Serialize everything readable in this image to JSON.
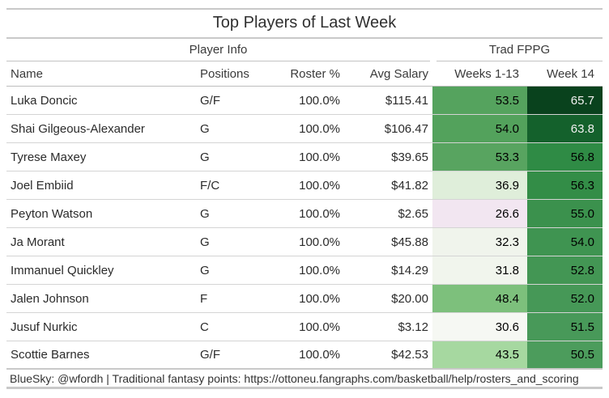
{
  "title": "Top Players of Last Week",
  "groups": {
    "player_info": "Player Info",
    "trad_fppg": "Trad FPPG"
  },
  "columns": {
    "name": "Name",
    "positions": "Positions",
    "roster": "Roster %",
    "salary": "Avg Salary",
    "weeks_1_13": "Weeks 1-13",
    "week_14": "Week 14"
  },
  "table": {
    "rows": [
      {
        "name": "Luka Doncic",
        "positions": "G/F",
        "roster": "100.0%",
        "salary": "$115.41",
        "w13": "53.5",
        "w14": "65.7",
        "w13_bg": "#55a35e",
        "w13_fg": "#000000",
        "w14_bg": "#09421d",
        "w14_fg": "#f1f1f1"
      },
      {
        "name": "Shai Gilgeous-Alexander",
        "positions": "G",
        "roster": "100.0%",
        "salary": "$106.47",
        "w13": "54.0",
        "w14": "63.8",
        "w13_bg": "#53a25c",
        "w13_fg": "#000000",
        "w14_bg": "#14612c",
        "w14_fg": "#f1f1f1"
      },
      {
        "name": "Tyrese Maxey",
        "positions": "G",
        "roster": "100.0%",
        "salary": "$39.65",
        "w13": "53.3",
        "w14": "56.8",
        "w13_bg": "#58a460",
        "w13_fg": "#000000",
        "w14_bg": "#2f8b45",
        "w14_fg": "#000000"
      },
      {
        "name": "Joel Embiid",
        "positions": "F/C",
        "roster": "100.0%",
        "salary": "$41.82",
        "w13": "36.9",
        "w14": "56.3",
        "w13_bg": "#dfeeda",
        "w13_fg": "#000000",
        "w14_bg": "#338d47",
        "w14_fg": "#000000"
      },
      {
        "name": "Peyton Watson",
        "positions": "G",
        "roster": "100.0%",
        "salary": "$2.65",
        "w13": "26.6",
        "w14": "55.0",
        "w13_bg": "#f2e6f1",
        "w13_fg": "#000000",
        "w14_bg": "#3b914d",
        "w14_fg": "#000000"
      },
      {
        "name": "Ja Morant",
        "positions": "G",
        "roster": "100.0%",
        "salary": "$45.88",
        "w13": "32.3",
        "w14": "54.0",
        "w13_bg": "#f0f4ec",
        "w13_fg": "#000000",
        "w14_bg": "#3f9451",
        "w14_fg": "#000000"
      },
      {
        "name": "Immanuel Quickley",
        "positions": "G",
        "roster": "100.0%",
        "salary": "$14.29",
        "w13": "31.8",
        "w14": "52.8",
        "w13_bg": "#f1f5ed",
        "w13_fg": "#000000",
        "w14_bg": "#439654",
        "w14_fg": "#000000"
      },
      {
        "name": "Jalen Johnson",
        "positions": "F",
        "roster": "100.0%",
        "salary": "$20.00",
        "w13": "48.4",
        "w14": "52.0",
        "w13_bg": "#7dc07c",
        "w13_fg": "#000000",
        "w14_bg": "#469857",
        "w14_fg": "#000000"
      },
      {
        "name": "Jusuf Nurkic",
        "positions": "C",
        "roster": "100.0%",
        "salary": "$3.12",
        "w13": "30.6",
        "w14": "51.5",
        "w13_bg": "#f6f8f3",
        "w13_fg": "#000000",
        "w14_bg": "#489959",
        "w14_fg": "#000000"
      },
      {
        "name": "Scottie Barnes",
        "positions": "G/F",
        "roster": "100.0%",
        "salary": "$42.53",
        "w13": "43.5",
        "w14": "50.5",
        "w13_bg": "#a6d8a0",
        "w13_fg": "#000000",
        "w14_bg": "#4c9c5c",
        "w14_fg": "#000000"
      }
    ]
  },
  "footer": "BlueSky: @wfordh | Traditional fantasy points: https://ottoneu.fangraphs.com/basketball/help/rosters_and_scoring",
  "chart_data": {
    "type": "table",
    "title": "Top Players of Last Week",
    "column_groups": [
      {
        "label": "Player Info",
        "columns": [
          "Name",
          "Positions",
          "Roster %",
          "Avg Salary"
        ]
      },
      {
        "label": "Trad FPPG",
        "columns": [
          "Weeks 1-13",
          "Week 14"
        ]
      }
    ],
    "columns": [
      "Name",
      "Positions",
      "Roster %",
      "Avg Salary",
      "Weeks 1-13",
      "Week 14"
    ],
    "rows": [
      [
        "Luka Doncic",
        "G/F",
        "100.0%",
        "$115.41",
        53.5,
        65.7
      ],
      [
        "Shai Gilgeous-Alexander",
        "G",
        "100.0%",
        "$106.47",
        54.0,
        63.8
      ],
      [
        "Tyrese Maxey",
        "G",
        "100.0%",
        "$39.65",
        53.3,
        56.8
      ],
      [
        "Joel Embiid",
        "F/C",
        "100.0%",
        "$41.82",
        36.9,
        56.3
      ],
      [
        "Peyton Watson",
        "G",
        "100.0%",
        "$2.65",
        26.6,
        55.0
      ],
      [
        "Ja Morant",
        "G",
        "100.0%",
        "$45.88",
        32.3,
        54.0
      ],
      [
        "Immanuel Quickley",
        "G",
        "100.0%",
        "$14.29",
        31.8,
        52.8
      ],
      [
        "Jalen Johnson",
        "F",
        "100.0%",
        "$20.00",
        48.4,
        52.0
      ],
      [
        "Jusuf Nurkic",
        "C",
        "100.0%",
        "$3.12",
        30.6,
        51.5
      ],
      [
        "Scottie Barnes",
        "G/F",
        "100.0%",
        "$42.53",
        43.5,
        50.5
      ]
    ],
    "heatmap": {
      "columns": [
        "Weeks 1-13",
        "Week 14"
      ],
      "colormap": "purple-to-green diverging (low = pale purple, high = dark green)",
      "value_range": [
        26.6,
        65.7
      ]
    },
    "footnote": "BlueSky: @wfordh | Traditional fantasy points: https://ottoneu.fangraphs.com/basketball/help/rosters_and_scoring"
  }
}
